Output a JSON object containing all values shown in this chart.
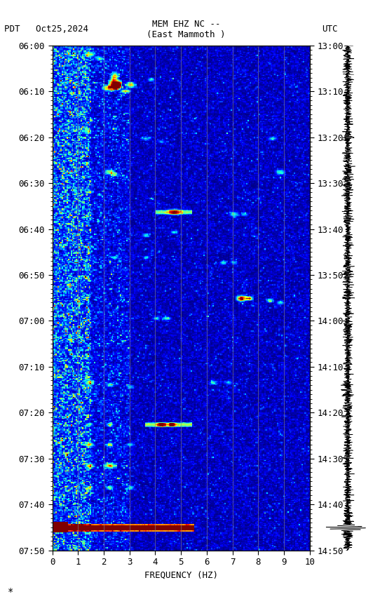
{
  "title_line1": "MEM EHZ NC --",
  "title_line2": "(East Mammoth )",
  "left_label": "PDT   Oct25,2024",
  "right_label": "UTC",
  "xlabel": "FREQUENCY (HZ)",
  "freq_min": 0,
  "freq_max": 10,
  "time_label_left": [
    "06:00",
    "06:10",
    "06:20",
    "06:30",
    "06:40",
    "06:50",
    "07:00",
    "07:10",
    "07:20",
    "07:30",
    "07:40",
    "07:50"
  ],
  "time_label_right": [
    "13:00",
    "13:10",
    "13:20",
    "13:30",
    "13:40",
    "13:50",
    "14:00",
    "14:10",
    "14:20",
    "14:30",
    "14:40",
    "14:50"
  ],
  "n_time": 480,
  "n_freq": 200,
  "background_color": "#ffffff",
  "spectrogram_cmap": "jet",
  "vmin": 0.0,
  "vmax": 0.18,
  "grid_color": "#888888",
  "grid_alpha": 0.6,
  "label_color": "#000000",
  "font_size": 9,
  "title_font_size": 9
}
